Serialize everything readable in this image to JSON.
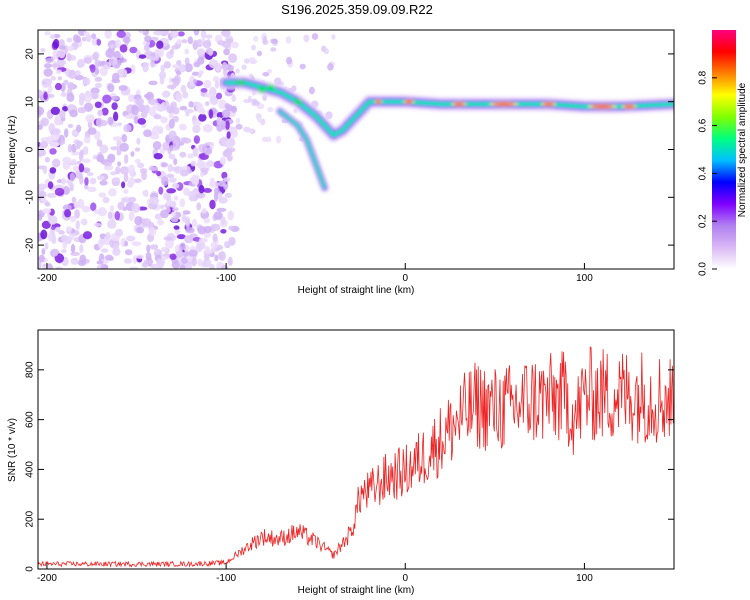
{
  "title": "S196.2025.359.09.09.R22",
  "chart_data": [
    {
      "type": "heatmap",
      "name": "spectrogram",
      "xlabel": "Height of straight line (km)",
      "ylabel": "Frequency (Hz)",
      "xlim": [
        -205,
        150
      ],
      "ylim": [
        -25,
        25
      ],
      "xticks": [
        -200,
        -100,
        0,
        100
      ],
      "yticks": [
        -20,
        -10,
        0,
        10,
        20
      ],
      "colorbar": {
        "label": "Normalized spectral amplitude",
        "range": [
          0.0,
          1.0
        ],
        "ticks": [
          0.0,
          0.2,
          0.4,
          0.6,
          0.8
        ],
        "tick_labels": [
          "0.0",
          "0.2",
          "0.4",
          "0.6",
          "0.8"
        ],
        "colors": [
          "#ffffff",
          "#d9b8f5",
          "#b080f0",
          "#8000ff",
          "#0000ff",
          "#00c0ff",
          "#00ff80",
          "#80ff00",
          "#ffff00",
          "#ff8000",
          "#ff0000",
          "#ff0080"
        ]
      },
      "ridge": {
        "x": [
          -100,
          -90,
          -80,
          -70,
          -60,
          -50,
          -40,
          -35,
          -30,
          -25,
          -20,
          -10,
          0,
          20,
          50,
          80,
          100,
          120,
          150
        ],
        "y": [
          14,
          14,
          13,
          12,
          10,
          7,
          3,
          4,
          6,
          8,
          10,
          10,
          10,
          9.5,
          9.5,
          9.5,
          9,
          9,
          9.5
        ]
      },
      "branch": {
        "x": [
          -70,
          -60,
          -55,
          -50,
          -45
        ],
        "y": [
          8,
          5,
          2,
          -3,
          -8
        ]
      }
    },
    {
      "type": "line",
      "name": "snr",
      "xlabel": "Height of straight line (km)",
      "ylabel": "SNR (10 * v/v)",
      "xlim": [
        -205,
        150
      ],
      "ylim": [
        0,
        960
      ],
      "xticks": [
        -200,
        -100,
        0,
        100
      ],
      "yticks": [
        0,
        200,
        400,
        600,
        800
      ],
      "series": [
        {
          "name": "SNR",
          "color": "#ee2222",
          "x": [
            -205,
            -180,
            -150,
            -120,
            -100,
            -90,
            -80,
            -70,
            -60,
            -50,
            -40,
            -30,
            -25,
            -20,
            -10,
            0,
            10,
            20,
            30,
            40,
            50,
            60,
            70,
            80,
            90,
            95,
            100,
            110,
            120,
            130,
            140,
            150
          ],
          "y": [
            20,
            20,
            20,
            20,
            25,
            80,
            130,
            120,
            150,
            110,
            55,
            150,
            300,
            310,
            370,
            390,
            450,
            520,
            600,
            660,
            640,
            650,
            680,
            680,
            690,
            600,
            700,
            700,
            700,
            700,
            690,
            680
          ]
        }
      ]
    }
  ]
}
